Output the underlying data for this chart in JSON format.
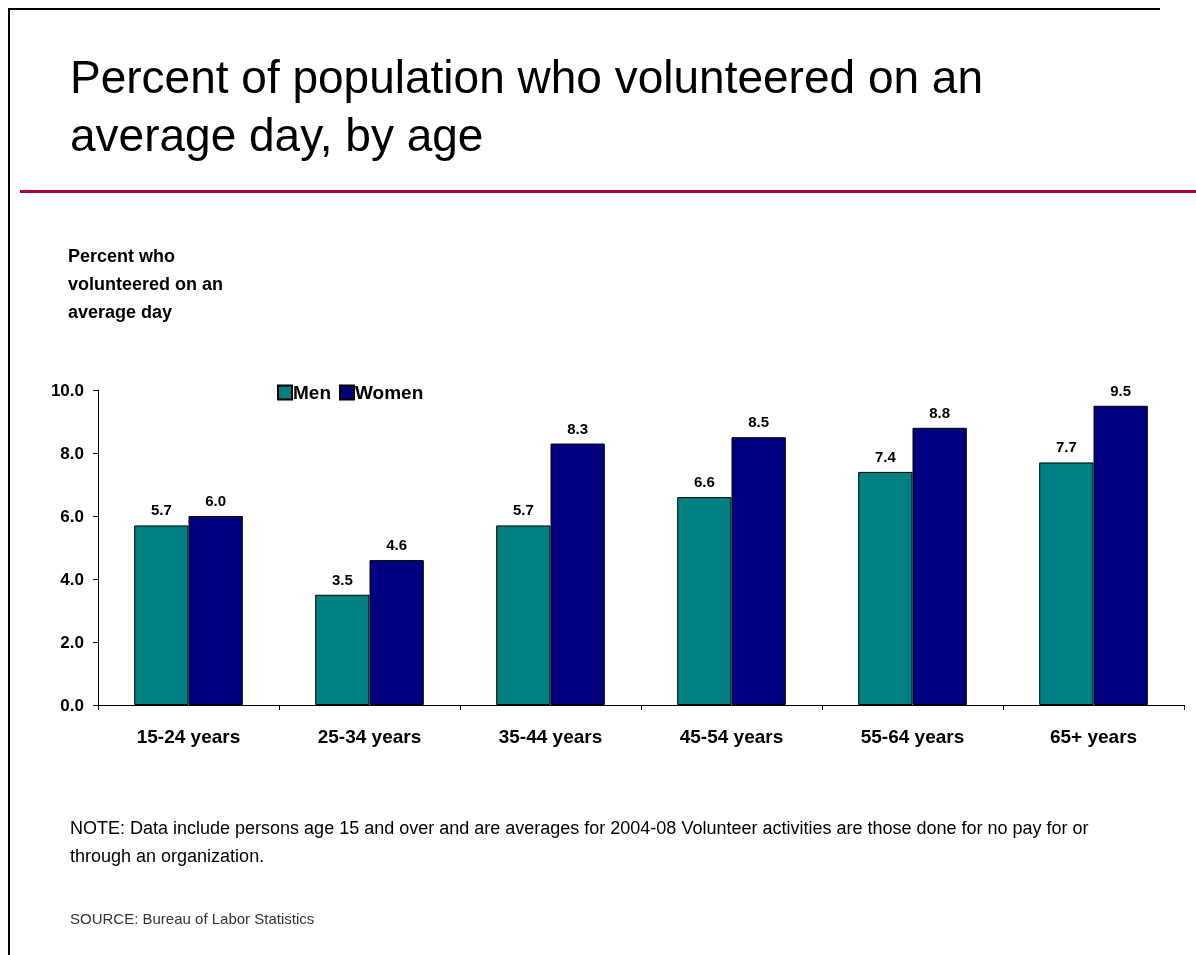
{
  "chart_data": {
    "type": "bar",
    "title": "Percent of population who volunteered on an average day, by age",
    "ylabel": "Percent who volunteered on an average day",
    "categories": [
      "15-24 years",
      "25-34 years",
      "35-44 years",
      "45-54 years",
      "55-64 years",
      "65+ years"
    ],
    "series": [
      {
        "name": "Men",
        "color": "#008080",
        "values": [
          5.7,
          3.5,
          5.7,
          6.6,
          7.4,
          7.7
        ],
        "value_labels": [
          "5.7",
          "3.5",
          "5.7",
          "6.6",
          "7.4",
          "7.7"
        ]
      },
      {
        "name": "Women",
        "color": "#000080",
        "values": [
          6.0,
          4.6,
          8.3,
          8.5,
          8.8,
          9.5
        ],
        "value_labels": [
          "6.0",
          "4.6",
          "8.3",
          "8.5",
          "8.8",
          "9.5"
        ]
      }
    ],
    "ylim": [
      0,
      10
    ],
    "yticks": [
      {
        "value": 0,
        "label": "0.0"
      },
      {
        "value": 2,
        "label": "2.0"
      },
      {
        "value": 4,
        "label": "4.0"
      },
      {
        "value": 6,
        "label": "6.0"
      },
      {
        "value": 8,
        "label": "8.0"
      },
      {
        "value": 10,
        "label": "10.0"
      }
    ],
    "grid": false,
    "legend": "top left",
    "annotations": [
      "NOTE: Data include persons age 15 and over and are averages for 2004-08 Volunteer activities are those done for no pay for or through an organization.",
      "SOURCE: Bureau of Labor Statistics"
    ]
  }
}
